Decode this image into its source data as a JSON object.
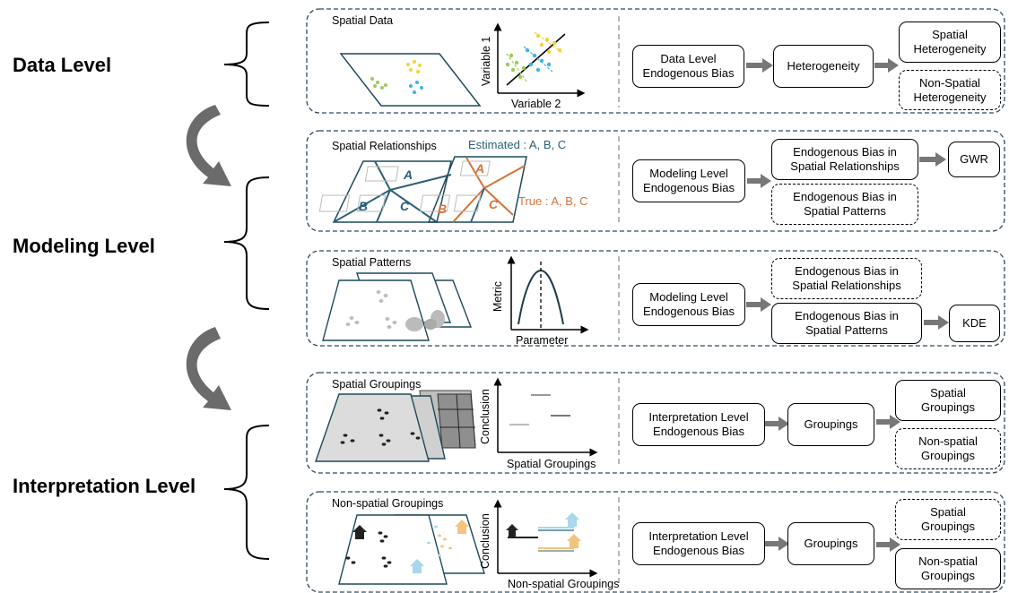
{
  "levels": {
    "data": "Data Level",
    "modeling": "Modeling Level",
    "interpretation": "Interpretation Level"
  },
  "panels": [
    {
      "title": "Spatial Data",
      "axis_y": "Variable 1",
      "axis_x": "Variable 2",
      "flow": [
        "Data Level\nEndogenous Bias",
        "Heterogeneity"
      ],
      "outcomes": [
        {
          "text": "Spatial\nHeterogeneity",
          "dashed": false
        },
        {
          "text": "Non-Spatial\nHeterogeneity",
          "dashed": true
        }
      ]
    },
    {
      "title": "Spatial Relationships",
      "estimated_label": "Estimated : A, B, C",
      "true_label": "True : A, B, C",
      "region_labels": [
        "A",
        "B",
        "C"
      ],
      "flow": [
        "Modeling Level\nEndogenous Bias"
      ],
      "outcomes": [
        {
          "text": "Endogenous Bias in\nSpatial Relationships",
          "dashed": false
        },
        {
          "text": "Endogenous Bias in\nSpatial Patterns",
          "dashed": true
        }
      ],
      "method": "GWR"
    },
    {
      "title": "Spatial Patterns",
      "axis_y": "Metric",
      "axis_x": "Parameter",
      "flow": [
        "Modeling Level\nEndogenous Bias"
      ],
      "outcomes": [
        {
          "text": "Endogenous Bias in\nSpatial Relationships",
          "dashed": true
        },
        {
          "text": "Endogenous Bias in\nSpatial Patterns",
          "dashed": false
        }
      ],
      "method": "KDE"
    },
    {
      "title": "Spatial Groupings",
      "axis_y": "Conclusion",
      "axis_x": "Spatial Groupings",
      "flow": [
        "Interpretation Level\nEndogenous Bias",
        "Groupings"
      ],
      "outcomes": [
        {
          "text": "Spatial\nGroupings",
          "dashed": false
        },
        {
          "text": "Non-spatial\nGroupings",
          "dashed": true
        }
      ]
    },
    {
      "title": "Non-spatial Groupings",
      "axis_y": "Conclusion",
      "axis_x": "Non-spatial Groupings",
      "flow": [
        "Interpretation Level\nEndogenous Bias",
        "Groupings"
      ],
      "outcomes": [
        {
          "text": "Spatial\nGroupings",
          "dashed": true
        },
        {
          "text": "Non-spatial\nGroupings",
          "dashed": false
        }
      ]
    }
  ],
  "colors": {
    "panel_border": "#2f4a5c",
    "map_edge": "#1d4a5a",
    "estimated": "#2d5f78",
    "true": "#d2743b",
    "arrow": "#777777",
    "curve_arrow": "#6b6b6b",
    "scatter_yellow": "#f2d43a",
    "scatter_blue": "#3fb5e0",
    "scatter_green": "#9ccc5a",
    "house_blue": "#a9d8ec",
    "house_orange": "#f3c47d"
  }
}
